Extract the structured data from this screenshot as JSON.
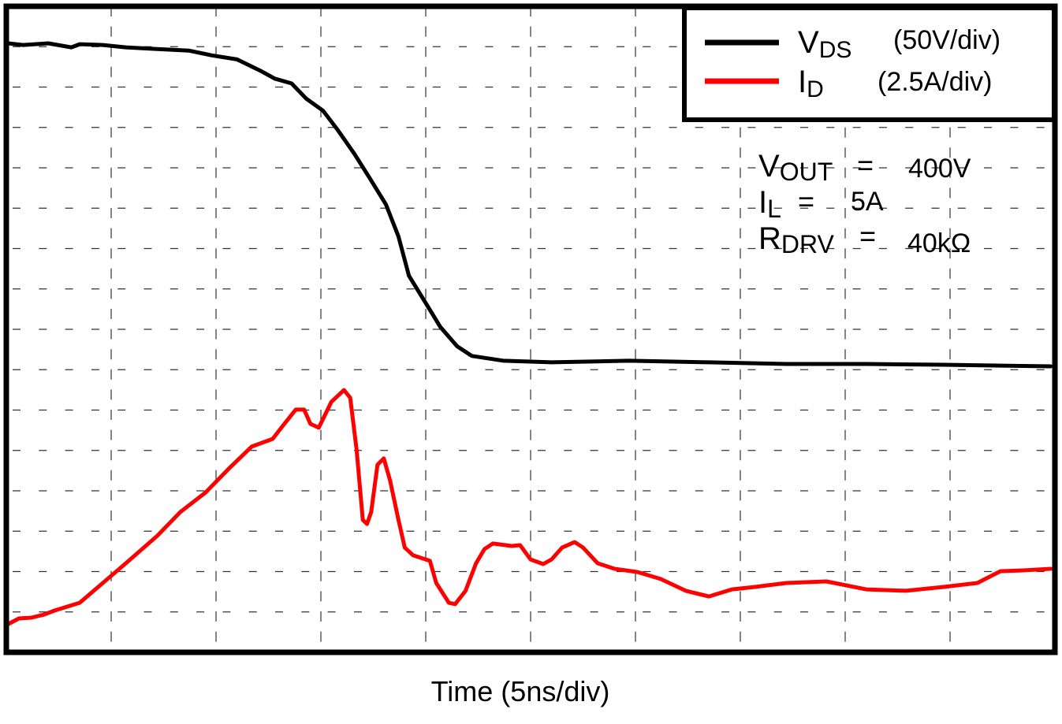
{
  "chart_data": {
    "type": "line",
    "xlabel": "Time (5ns/div)",
    "x_units": "ns",
    "xlim": [
      0,
      50
    ],
    "x_divisions": 10,
    "y_divisions": 16,
    "grid": true,
    "legend_placement": "top-right",
    "legend": [
      {
        "name_main": "V",
        "name_sub": "DS",
        "scale": "(50V/div)",
        "color": "#000000"
      },
      {
        "name_main": "I",
        "name_sub": "D",
        "scale": "(2.5A/div)",
        "color": "#ff0000"
      }
    ],
    "annotations": [
      {
        "main": "V",
        "sub": "OUT",
        "eq": "=",
        "value": "400V"
      },
      {
        "main": "I",
        "sub": "L",
        "eq": "=",
        "value": "5A"
      },
      {
        "main": "R",
        "sub": "DRV",
        "eq": "=",
        "value": "40kΩ"
      }
    ],
    "series": [
      {
        "name": "VDS",
        "units": "V",
        "color": "#000000",
        "points": [
          [
            0.1,
            402
          ],
          [
            0.8,
            400
          ],
          [
            2.0,
            402
          ],
          [
            3.1,
            397
          ],
          [
            3.5,
            401
          ],
          [
            4.6,
            400
          ],
          [
            5.7,
            397
          ],
          [
            7.2,
            395
          ],
          [
            8.7,
            393
          ],
          [
            9.8,
            387
          ],
          [
            11.0,
            382
          ],
          [
            12.1,
            368
          ],
          [
            12.8,
            358
          ],
          [
            13.6,
            352
          ],
          [
            14.3,
            333
          ],
          [
            15.1,
            318
          ],
          [
            15.8,
            294
          ],
          [
            16.6,
            264
          ],
          [
            17.3,
            235
          ],
          [
            18.1,
            201
          ],
          [
            18.7,
            161
          ],
          [
            19.2,
            112
          ],
          [
            20.0,
            78
          ],
          [
            20.7,
            48
          ],
          [
            21.5,
            24
          ],
          [
            22.2,
            12
          ],
          [
            23.7,
            6
          ],
          [
            26.0,
            4
          ],
          [
            29.7,
            6
          ],
          [
            33.5,
            4
          ],
          [
            37.2,
            2
          ],
          [
            41.0,
            2
          ],
          [
            44.7,
            1
          ],
          [
            49.8,
            -1
          ]
        ]
      },
      {
        "name": "ID",
        "units": "A",
        "color": "#ff0000",
        "points": [
          [
            0.1,
            0
          ],
          [
            0.6,
            0.34
          ],
          [
            1.2,
            0.39
          ],
          [
            1.8,
            0.58
          ],
          [
            2.3,
            0.83
          ],
          [
            3.5,
            1.31
          ],
          [
            4.6,
            2.53
          ],
          [
            5.7,
            3.75
          ],
          [
            7.2,
            5.45
          ],
          [
            8.3,
            6.92
          ],
          [
            9.5,
            8.13
          ],
          [
            10.6,
            9.59
          ],
          [
            11.7,
            10.96
          ],
          [
            12.7,
            11.44
          ],
          [
            13.2,
            12.27
          ],
          [
            13.8,
            13.25
          ],
          [
            14.2,
            13.25
          ],
          [
            14.5,
            12.37
          ],
          [
            14.9,
            12.13
          ],
          [
            15.5,
            13.73
          ],
          [
            16.1,
            14.46
          ],
          [
            16.4,
            13.98
          ],
          [
            16.7,
            10.81
          ],
          [
            17.0,
            6.43
          ],
          [
            17.2,
            6.18
          ],
          [
            17.4,
            6.92
          ],
          [
            17.7,
            9.84
          ],
          [
            18.0,
            10.23
          ],
          [
            18.3,
            8.86
          ],
          [
            18.7,
            6.43
          ],
          [
            19.0,
            4.72
          ],
          [
            19.4,
            4.24
          ],
          [
            20.2,
            3.9
          ],
          [
            20.5,
            2.53
          ],
          [
            21.1,
            1.31
          ],
          [
            21.4,
            1.22
          ],
          [
            21.9,
            2.05
          ],
          [
            22.4,
            3.75
          ],
          [
            22.8,
            4.63
          ],
          [
            23.2,
            4.97
          ],
          [
            24.1,
            4.82
          ],
          [
            24.5,
            4.87
          ],
          [
            25.0,
            3.99
          ],
          [
            25.6,
            3.7
          ],
          [
            26.0,
            3.99
          ],
          [
            26.5,
            4.72
          ],
          [
            27.1,
            5.06
          ],
          [
            27.5,
            4.72
          ],
          [
            28.2,
            3.75
          ],
          [
            29.0,
            3.41
          ],
          [
            30.1,
            3.21
          ],
          [
            31.2,
            2.78
          ],
          [
            32.4,
            2.05
          ],
          [
            33.5,
            1.7
          ],
          [
            34.6,
            2.14
          ],
          [
            35.7,
            2.29
          ],
          [
            37.2,
            2.53
          ],
          [
            39.1,
            2.63
          ],
          [
            41.0,
            2.14
          ],
          [
            42.9,
            2.05
          ],
          [
            44.7,
            2.29
          ],
          [
            46.3,
            2.53
          ],
          [
            47.4,
            3.26
          ],
          [
            48.5,
            3.31
          ],
          [
            49.8,
            3.41
          ]
        ]
      }
    ]
  }
}
